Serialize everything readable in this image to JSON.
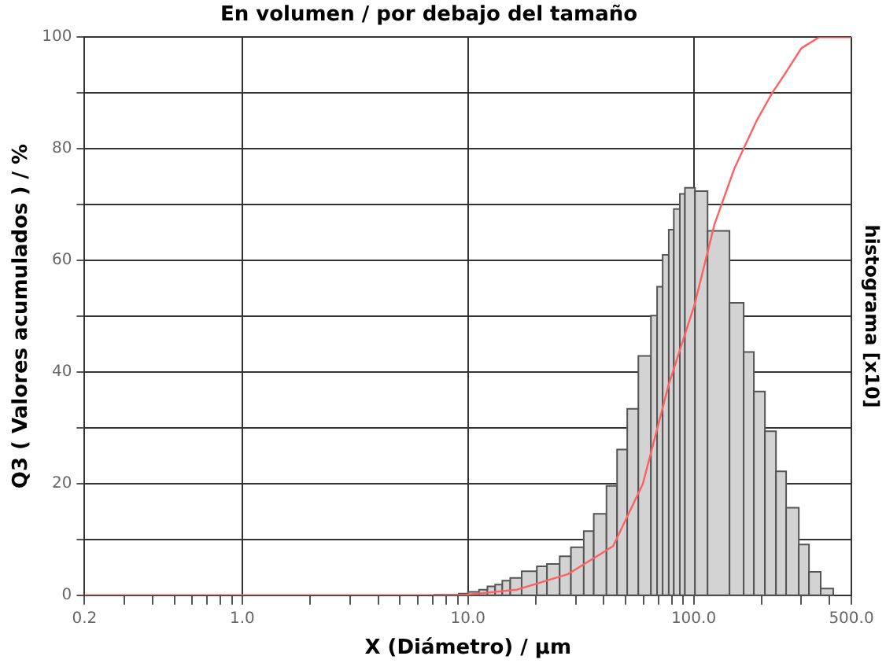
{
  "chart_data": {
    "type": "histogram",
    "title": "En volumen / por debajo del tamaño",
    "xlabel": "X (Diámetro) / µm",
    "ylabel": "Q3 ( Valores acumulados ) / %",
    "y2label": "histograma [x10]",
    "log": "x",
    "grid": true,
    "color": "#d3d3d3",
    "bins": [
      7.1,
      8.2,
      9.1,
      10,
      11.2,
      12.2,
      13.2,
      14.2,
      15.4,
      17.3,
      20.2,
      22.4,
      25.5,
      28.6,
      32.6,
      36.1,
      41.1,
      45.8,
      50.8,
      56.9,
      64.7,
      68.9,
      72.9,
      77.6,
      81.7,
      86.9,
      91.5,
      101.4,
      115.3,
      144.2,
      166.6,
      184.9,
      207,
      231.7,
      257,
      292.4,
      324.5,
      365.6,
      415.6
    ],
    "values": [
      0.1,
      0.1,
      0.3,
      0.6,
      1.0,
      1.6,
      1.9,
      2.6,
      3.1,
      4.3,
      5.2,
      5.6,
      7.0,
      8.6,
      11.5,
      14.6,
      19.6,
      26.1,
      33.4,
      42.9,
      50.1,
      55.3,
      61.0,
      65.5,
      69.2,
      71.9,
      73.0,
      72.4,
      65.3,
      52.4,
      43.6,
      36.5,
      29.4,
      22.2,
      15.7,
      9.1,
      4.2,
      1.2
    ],
    "series": [
      {
        "type": "line",
        "color": "#ff6060",
        "x": [
          0.2,
          7,
          9.8,
          16.5,
          27.8,
          44,
          59.5,
          77.6,
          101,
          123.6,
          151.7,
          190,
          223,
          250,
          300,
          360,
          500
        ],
        "values": [
          0,
          0,
          0.1,
          1.0,
          3.8,
          8.8,
          19.9,
          37.8,
          52.1,
          66.4,
          76.5,
          85,
          90,
          93,
          98,
          100,
          100
        ]
      }
    ],
    "xlim": [
      0.2,
      500
    ],
    "xticks": [
      {
        "value": 0.2,
        "label": "0.2"
      },
      {
        "value": 0.3,
        "label": null
      },
      {
        "value": 0.4,
        "label": null
      },
      {
        "value": 0.5,
        "label": null
      },
      {
        "value": 0.6,
        "label": null
      },
      {
        "value": 0.7,
        "label": null
      },
      {
        "value": 0.8,
        "label": null
      },
      {
        "value": 0.9,
        "label": null
      },
      {
        "value": 1,
        "label": "1.0"
      },
      {
        "value": 2,
        "label": null
      },
      {
        "value": 3,
        "label": null
      },
      {
        "value": 4,
        "label": null
      },
      {
        "value": 5,
        "label": null
      },
      {
        "value": 6,
        "label": null
      },
      {
        "value": 7,
        "label": null
      },
      {
        "value": 8,
        "label": null
      },
      {
        "value": 9,
        "label": null
      },
      {
        "value": 10,
        "label": "10.0"
      },
      {
        "value": 20,
        "label": null
      },
      {
        "value": 30,
        "label": null
      },
      {
        "value": 40,
        "label": null
      },
      {
        "value": 50,
        "label": null
      },
      {
        "value": 60,
        "label": null
      },
      {
        "value": 70,
        "label": null
      },
      {
        "value": 80,
        "label": null
      },
      {
        "value": 90,
        "label": null
      },
      {
        "value": 100,
        "label": "100.0"
      },
      {
        "value": 200,
        "label": null
      },
      {
        "value": 300,
        "label": null
      },
      {
        "value": 400,
        "label": null
      },
      {
        "value": 500,
        "label": "500.0"
      }
    ],
    "ylim": [
      0,
      100
    ],
    "yticks": [
      0,
      {
        "value": 10,
        "label": null
      },
      20,
      {
        "value": 30,
        "label": null
      },
      40,
      {
        "value": 50,
        "label": null
      },
      60,
      {
        "value": 70,
        "label": null
      },
      80,
      {
        "value": 90,
        "label": null
      },
      100
    ]
  }
}
